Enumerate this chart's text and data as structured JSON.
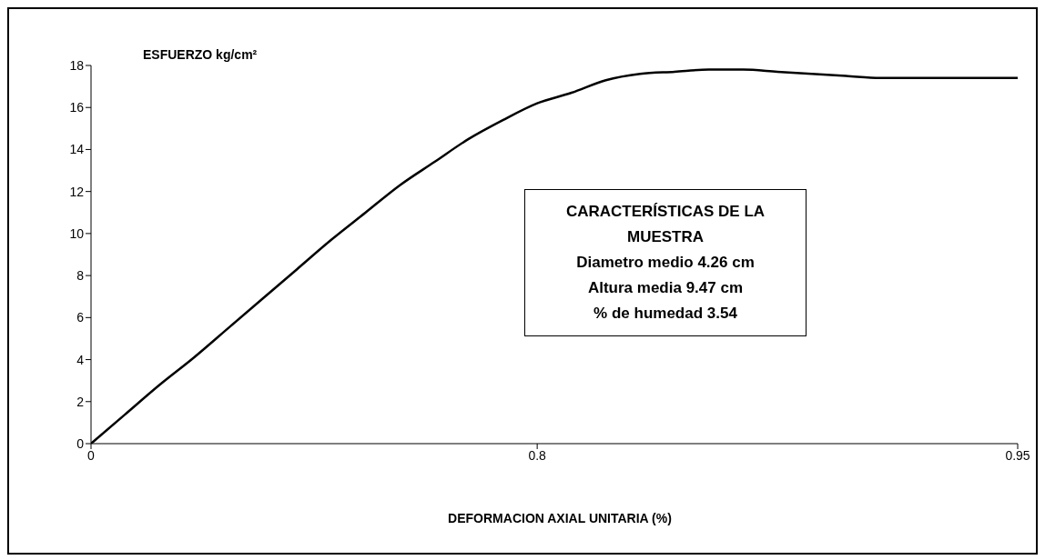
{
  "chart_data": {
    "type": "line",
    "ylabel": "ESFUERZO kg/cm²",
    "xlabel": "DEFORMACION AXIAL UNITARIA (%)",
    "categories": [
      "0",
      null,
      null,
      null,
      null,
      null,
      null,
      null,
      null,
      null,
      null,
      null,
      null,
      "0.8",
      null,
      null,
      null,
      null,
      null,
      null,
      null,
      null,
      null,
      null,
      null,
      null,
      null,
      "0.95"
    ],
    "series": [
      {
        "color": "#000000",
        "values": [
          0,
          1.4,
          2.8,
          4.1,
          5.5,
          6.9,
          8.3,
          9.7,
          11.0,
          12.3,
          13.4,
          14.5,
          15.4,
          16.2,
          16.7,
          17.3,
          17.6,
          17.7,
          17.8,
          17.8,
          17.7,
          17.6,
          17.5,
          17.4,
          17.4,
          17.4,
          17.4,
          17.4
        ]
      }
    ],
    "ylim": [
      0,
      18
    ],
    "yticks": [
      0,
      2,
      4,
      6,
      8,
      10,
      12,
      14,
      16,
      18
    ],
    "grid": false,
    "marker": "none",
    "line_style": "solid",
    "annotations": [
      "CARACTERÍSTICAS DE LA\nMUESTRA\nDiametro medio 4.26 cm\nAltura media 9.47 cm\n% de humedad 3.54"
    ]
  }
}
